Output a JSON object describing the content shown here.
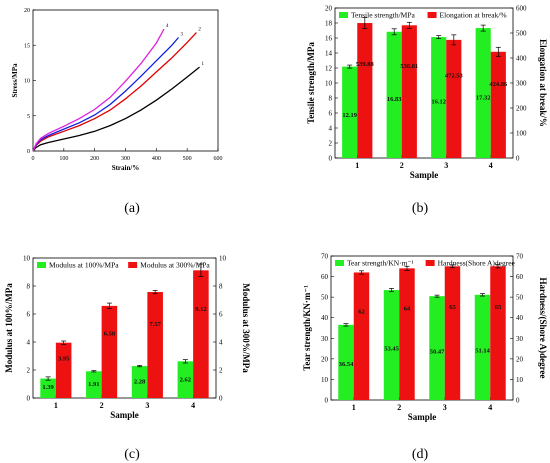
{
  "panels": [
    {
      "label": "(a)"
    },
    {
      "label": "(b)"
    },
    {
      "label": "(c)"
    },
    {
      "label": "(d)"
    }
  ],
  "chart_data": [
    {
      "id": "a",
      "type": "line",
      "xlabel": "Strain/%",
      "ylabel": "Stress/MPa",
      "xticks": [
        0,
        100,
        200,
        300,
        400,
        500,
        600
      ],
      "yticks": [
        0,
        5,
        10,
        15,
        20
      ],
      "xlim": [
        0,
        600
      ],
      "ylim": [
        0,
        20
      ],
      "grid": false,
      "series": [
        {
          "name": "1",
          "color": "#000000",
          "x": [
            0,
            10,
            25,
            50,
            100,
            150,
            200,
            250,
            300,
            350,
            400,
            450,
            500,
            540
          ],
          "y": [
            0,
            0.5,
            0.9,
            1.2,
            1.7,
            2.2,
            2.8,
            3.6,
            4.6,
            5.8,
            7.2,
            8.8,
            10.5,
            11.9
          ]
        },
        {
          "name": "2",
          "color": "#e00000",
          "x": [
            0,
            10,
            25,
            50,
            100,
            150,
            200,
            250,
            300,
            350,
            400,
            450,
            500,
            530
          ],
          "y": [
            0,
            0.8,
            1.4,
            2.0,
            2.8,
            3.6,
            4.6,
            5.8,
            7.4,
            9.2,
            11.2,
            13.2,
            15.4,
            16.8
          ]
        },
        {
          "name": "3",
          "color": "#1020e0",
          "x": [
            0,
            10,
            25,
            50,
            100,
            150,
            200,
            250,
            300,
            350,
            400,
            450,
            472
          ],
          "y": [
            0,
            0.9,
            1.6,
            2.2,
            3.1,
            4.0,
            5.1,
            6.6,
            8.5,
            10.6,
            12.8,
            15.0,
            16.1
          ]
        },
        {
          "name": "4",
          "color": "#e020e0",
          "x": [
            0,
            10,
            25,
            50,
            100,
            150,
            200,
            250,
            300,
            350,
            400,
            425
          ],
          "y": [
            0,
            1.0,
            1.8,
            2.5,
            3.5,
            4.6,
            5.9,
            7.6,
            9.9,
            12.4,
            15.3,
            17.3
          ]
        }
      ]
    },
    {
      "id": "b",
      "type": "bar",
      "categories": [
        "1",
        "2",
        "3",
        "4"
      ],
      "xlabel": "Sample",
      "ylabel": "Tensile strength/MPa",
      "y2label": "Elongation at break/%",
      "ylim": [
        0,
        20
      ],
      "y2lim": [
        0,
        600
      ],
      "yticks": [
        0,
        2,
        4,
        6,
        8,
        10,
        12,
        14,
        16,
        18,
        20
      ],
      "y2ticks": [
        0,
        100,
        200,
        300,
        400,
        500,
        600
      ],
      "legend_position": "top",
      "series": [
        {
          "name": "Tensile strength/MPa",
          "color": "#22ee22",
          "axis": "left",
          "values": [
            12.19,
            16.83,
            16.12,
            17.32
          ],
          "labels": [
            "12.19",
            "16.83",
            "16.12",
            "17.32"
          ],
          "errors": [
            0.2,
            0.4,
            0.2,
            0.4
          ]
        },
        {
          "name": "Elongation at break/%",
          "color": "#ee1111",
          "axis": "right",
          "values": [
            539.88,
            530.81,
            472.53,
            424.86
          ],
          "labels": [
            "539.88",
            "530.81",
            "472.53",
            "424.86"
          ],
          "errors": [
            22,
            12,
            20,
            18
          ]
        }
      ]
    },
    {
      "id": "c",
      "type": "bar",
      "categories": [
        "1",
        "2",
        "3",
        "4"
      ],
      "xlabel": "Sample",
      "ylabel": "Modulus at 100%/MPa",
      "y2label": "Modulus at 300%/MPa",
      "ylim": [
        0,
        10
      ],
      "y2lim": [
        0,
        10
      ],
      "yticks": [
        0,
        2,
        4,
        6,
        8,
        10
      ],
      "y2ticks": [
        0,
        2,
        4,
        6,
        8,
        10
      ],
      "legend_position": "top",
      "series": [
        {
          "name": "Modulus at 100%/MPa",
          "color": "#22ee22",
          "axis": "left",
          "values": [
            1.39,
            1.91,
            2.28,
            2.62
          ],
          "labels": [
            "1.39",
            "1.91",
            "2.28",
            "2.62"
          ],
          "errors": [
            0.12,
            0.05,
            0.05,
            0.12
          ]
        },
        {
          "name": "Modulus at 300%/MPa",
          "color": "#ee1111",
          "axis": "right",
          "values": [
            3.95,
            6.58,
            7.57,
            9.12
          ],
          "labels": [
            "3.95",
            "6.58",
            "7.57",
            "9.12"
          ],
          "errors": [
            0.12,
            0.2,
            0.12,
            0.45
          ]
        }
      ]
    },
    {
      "id": "d",
      "type": "bar",
      "categories": [
        "1",
        "2",
        "3",
        "4"
      ],
      "xlabel": "Sample",
      "ylabel": "Tear strength/KN·m⁻¹",
      "y2label": "Hardness/(Shore A)degree",
      "ylim": [
        0,
        70
      ],
      "y2lim": [
        0,
        70
      ],
      "yticks": [
        0,
        10,
        20,
        30,
        40,
        50,
        60,
        70
      ],
      "y2ticks": [
        0,
        10,
        20,
        30,
        40,
        50,
        60,
        70
      ],
      "legend_position": "top",
      "series": [
        {
          "name": "Tear strength/KN·m⁻¹",
          "color": "#22ee22",
          "axis": "left",
          "values": [
            36.54,
            53.45,
            50.47,
            51.14
          ],
          "labels": [
            "36.54",
            "53.45",
            "50.47",
            "51.14"
          ],
          "errors": [
            0.6,
            0.8,
            0.5,
            0.6
          ]
        },
        {
          "name": "Hardness(Shore A)degree",
          "color": "#ee1111",
          "axis": "right",
          "values": [
            62,
            64,
            65,
            65
          ],
          "labels": [
            "62",
            "64",
            "65",
            "65"
          ],
          "errors": [
            0.8,
            1.0,
            0.7,
            0.8
          ]
        }
      ]
    }
  ]
}
